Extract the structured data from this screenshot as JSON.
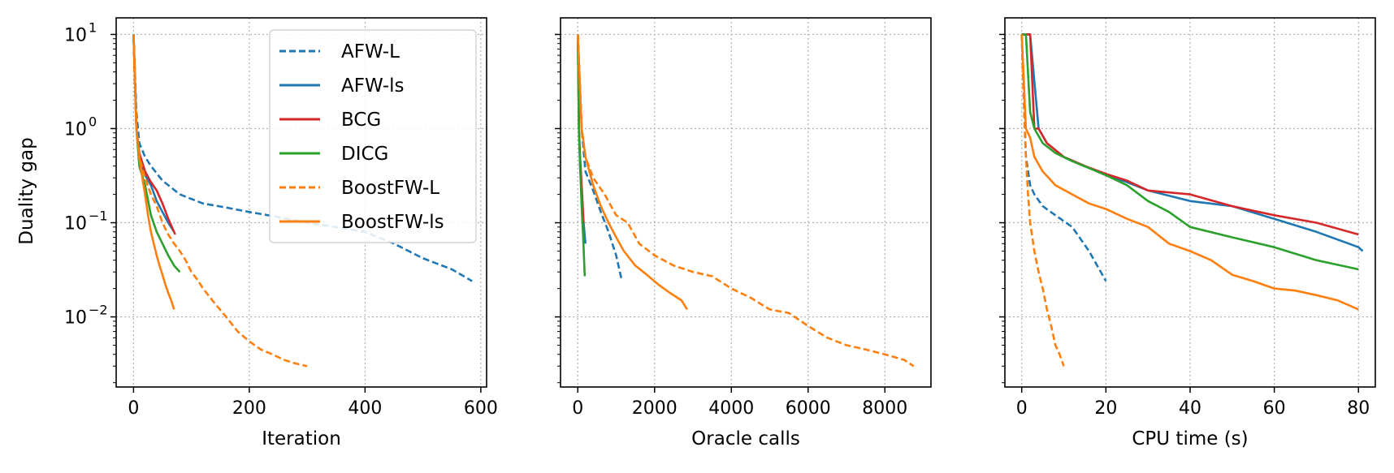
{
  "chart_data": [
    {
      "type": "line",
      "title": "",
      "xlabel": "Iteration",
      "ylabel": "Duality gap",
      "yscale": "log",
      "xlim": [
        -30,
        610
      ],
      "ylim": [
        0.0018,
        15
      ],
      "xticks": [
        0,
        200,
        400,
        600
      ],
      "xtick_labels": [
        "0",
        "200",
        "400",
        "600"
      ],
      "yticks": [
        0.01,
        0.1,
        1,
        10
      ],
      "ytick_labels": [
        "10",
        "10",
        "10",
        "10"
      ],
      "ytick_exponents": [
        "−2",
        "−1",
        "0",
        "1"
      ],
      "grid": true,
      "legend_position": "upper-right",
      "series": [
        {
          "name": "AFW-L",
          "color": "#1f77b4",
          "dash": "dashed",
          "x": [
            0,
            5,
            10,
            20,
            30,
            50,
            80,
            120,
            160,
            200,
            250,
            300,
            350,
            400,
            450,
            500,
            550,
            585
          ],
          "y": [
            10,
            1.5,
            0.7,
            0.5,
            0.4,
            0.28,
            0.2,
            0.16,
            0.145,
            0.13,
            0.115,
            0.1,
            0.09,
            0.08,
            0.06,
            0.042,
            0.032,
            0.024
          ]
        },
        {
          "name": "AFW-ls",
          "color": "#1f77b4",
          "dash": "solid",
          "x": [
            0,
            5,
            10,
            20,
            30,
            40,
            50,
            60,
            70
          ],
          "y": [
            10,
            1.0,
            0.5,
            0.32,
            0.25,
            0.17,
            0.13,
            0.1,
            0.08
          ]
        },
        {
          "name": "BCG",
          "color": "#d62728",
          "dash": "solid",
          "x": [
            0,
            5,
            10,
            20,
            30,
            40,
            50,
            60,
            72
          ],
          "y": [
            10,
            1.0,
            0.55,
            0.35,
            0.27,
            0.22,
            0.16,
            0.11,
            0.075
          ]
        },
        {
          "name": "DICG",
          "color": "#2ca02c",
          "dash": "solid",
          "x": [
            0,
            5,
            10,
            20,
            30,
            40,
            50,
            60,
            70,
            80
          ],
          "y": [
            10,
            1.0,
            0.4,
            0.25,
            0.12,
            0.08,
            0.06,
            0.045,
            0.035,
            0.03
          ]
        },
        {
          "name": "BoostFW-L",
          "color": "#ff7f0e",
          "dash": "dashed",
          "x": [
            0,
            5,
            10,
            20,
            30,
            40,
            50,
            60,
            70,
            80,
            90,
            100,
            110,
            120,
            140,
            160,
            180,
            200,
            220,
            240,
            260,
            280,
            300
          ],
          "y": [
            10,
            1.0,
            0.5,
            0.3,
            0.2,
            0.15,
            0.1,
            0.075,
            0.06,
            0.05,
            0.04,
            0.03,
            0.025,
            0.02,
            0.014,
            0.01,
            0.007,
            0.0055,
            0.0045,
            0.004,
            0.0035,
            0.0032,
            0.003
          ]
        },
        {
          "name": "BoostFW-ls",
          "color": "#ff7f0e",
          "dash": "solid",
          "x": [
            0,
            5,
            10,
            15,
            20,
            25,
            30,
            35,
            40,
            45,
            50,
            55,
            60,
            65,
            70
          ],
          "y": [
            10,
            1.0,
            0.5,
            0.3,
            0.2,
            0.12,
            0.08,
            0.06,
            0.045,
            0.035,
            0.028,
            0.022,
            0.018,
            0.015,
            0.012
          ]
        }
      ]
    },
    {
      "type": "line",
      "title": "",
      "xlabel": "Oracle calls",
      "ylabel": "",
      "yscale": "log",
      "xlim": [
        -450,
        9200
      ],
      "ylim": [
        0.0018,
        15
      ],
      "xticks": [
        0,
        2000,
        4000,
        6000,
        8000
      ],
      "xtick_labels": [
        "0",
        "2000",
        "4000",
        "6000",
        "8000"
      ],
      "grid": true,
      "series": [
        {
          "name": "AFW-L",
          "color": "#1f77b4",
          "dash": "dashed",
          "x": [
            0,
            100,
            200,
            400,
            600,
            800,
            1000,
            1150
          ],
          "y": [
            10,
            1.0,
            0.35,
            0.22,
            0.13,
            0.08,
            0.045,
            0.024
          ]
        },
        {
          "name": "AFW-ls",
          "color": "#1f77b4",
          "dash": "solid",
          "x": [
            0,
            30,
            60,
            100,
            150,
            200
          ],
          "y": [
            10,
            1.0,
            0.4,
            0.2,
            0.1,
            0.06
          ]
        },
        {
          "name": "BCG",
          "color": "#d62728",
          "dash": "solid",
          "x": [
            0,
            30,
            60,
            100,
            150
          ],
          "y": [
            10,
            1.0,
            0.5,
            0.25,
            0.1
          ]
        },
        {
          "name": "DICG",
          "color": "#2ca02c",
          "dash": "solid",
          "x": [
            0,
            30,
            60,
            100,
            140,
            180
          ],
          "y": [
            10,
            1.0,
            0.4,
            0.15,
            0.07,
            0.027
          ]
        },
        {
          "name": "BoostFW-L",
          "color": "#ff7f0e",
          "dash": "dashed",
          "x": [
            0,
            100,
            200,
            400,
            700,
            1000,
            1300,
            1600,
            2000,
            2500,
            3000,
            3500,
            4000,
            4500,
            5000,
            5500,
            6000,
            6500,
            7000,
            7500,
            8000,
            8500,
            8750
          ],
          "y": [
            10,
            1.0,
            0.5,
            0.3,
            0.2,
            0.12,
            0.1,
            0.06,
            0.045,
            0.035,
            0.03,
            0.027,
            0.02,
            0.016,
            0.012,
            0.011,
            0.008,
            0.006,
            0.005,
            0.0045,
            0.004,
            0.0035,
            0.003
          ]
        },
        {
          "name": "BoostFW-ls",
          "color": "#ff7f0e",
          "dash": "solid",
          "x": [
            0,
            100,
            200,
            400,
            600,
            800,
            1000,
            1200,
            1500,
            1800,
            2100,
            2400,
            2700,
            2850
          ],
          "y": [
            10,
            1.0,
            0.5,
            0.25,
            0.15,
            0.1,
            0.07,
            0.05,
            0.035,
            0.028,
            0.022,
            0.018,
            0.015,
            0.012
          ]
        }
      ]
    },
    {
      "type": "line",
      "title": "",
      "xlabel": "CPU time (s)",
      "ylabel": "",
      "yscale": "log",
      "xlim": [
        -4,
        84
      ],
      "ylim": [
        0.0018,
        15
      ],
      "xticks": [
        0,
        20,
        40,
        60,
        80
      ],
      "xtick_labels": [
        "0",
        "20",
        "40",
        "60",
        "80"
      ],
      "grid": true,
      "series": [
        {
          "name": "AFW-L",
          "color": "#1f77b4",
          "dash": "dashed",
          "x": [
            0,
            0.5,
            1,
            2,
            3,
            5,
            8,
            12,
            16,
            20
          ],
          "y": [
            10,
            2.0,
            0.5,
            0.25,
            0.2,
            0.15,
            0.12,
            0.09,
            0.05,
            0.024
          ]
        },
        {
          "name": "AFW-ls",
          "color": "#1f77b4",
          "dash": "solid",
          "x": [
            0,
            2,
            4,
            6,
            10,
            15,
            20,
            25,
            30,
            40,
            50,
            60,
            70,
            80,
            81
          ],
          "y": [
            10,
            10,
            1.0,
            0.7,
            0.5,
            0.4,
            0.32,
            0.27,
            0.22,
            0.17,
            0.15,
            0.11,
            0.08,
            0.055,
            0.05
          ]
        },
        {
          "name": "BCG",
          "color": "#d62728",
          "dash": "solid",
          "x": [
            0,
            2,
            3,
            4,
            6,
            10,
            15,
            20,
            25,
            30,
            40,
            50,
            60,
            70,
            80
          ],
          "y": [
            10,
            10,
            1.0,
            1.0,
            0.7,
            0.5,
            0.4,
            0.33,
            0.28,
            0.22,
            0.2,
            0.15,
            0.12,
            0.1,
            0.075
          ]
        },
        {
          "name": "DICG",
          "color": "#2ca02c",
          "dash": "solid",
          "x": [
            0,
            1,
            2,
            3,
            5,
            8,
            12,
            16,
            20,
            25,
            30,
            35,
            40,
            50,
            60,
            70,
            80
          ],
          "y": [
            10,
            10,
            1.5,
            1.0,
            0.7,
            0.55,
            0.45,
            0.38,
            0.32,
            0.25,
            0.17,
            0.13,
            0.09,
            0.07,
            0.055,
            0.04,
            0.032
          ]
        },
        {
          "name": "BoostFW-L",
          "color": "#ff7f0e",
          "dash": "dashed",
          "x": [
            0,
            0.5,
            1,
            1.5,
            2,
            3,
            4,
            5,
            6,
            7,
            8,
            9,
            10
          ],
          "y": [
            10,
            2.0,
            0.5,
            0.2,
            0.1,
            0.05,
            0.03,
            0.02,
            0.012,
            0.008,
            0.005,
            0.004,
            0.003
          ]
        },
        {
          "name": "BoostFW-ls",
          "color": "#ff7f0e",
          "dash": "solid",
          "x": [
            0,
            1,
            2,
            3,
            5,
            8,
            12,
            16,
            20,
            25,
            30,
            35,
            40,
            45,
            50,
            55,
            60,
            65,
            70,
            75,
            80
          ],
          "y": [
            10,
            1.0,
            0.8,
            0.5,
            0.35,
            0.25,
            0.2,
            0.16,
            0.14,
            0.11,
            0.09,
            0.06,
            0.05,
            0.04,
            0.028,
            0.024,
            0.02,
            0.019,
            0.017,
            0.015,
            0.012
          ]
        }
      ]
    }
  ],
  "legend": {
    "entries": [
      {
        "label": "AFW-L",
        "color": "#1f77b4",
        "dash": "dashed"
      },
      {
        "label": "AFW-ls",
        "color": "#1f77b4",
        "dash": "solid"
      },
      {
        "label": "BCG",
        "color": "#d62728",
        "dash": "solid"
      },
      {
        "label": "DICG",
        "color": "#2ca02c",
        "dash": "solid"
      },
      {
        "label": "BoostFW-L",
        "color": "#ff7f0e",
        "dash": "dashed"
      },
      {
        "label": "BoostFW-ls",
        "color": "#ff7f0e",
        "dash": "solid"
      }
    ]
  }
}
